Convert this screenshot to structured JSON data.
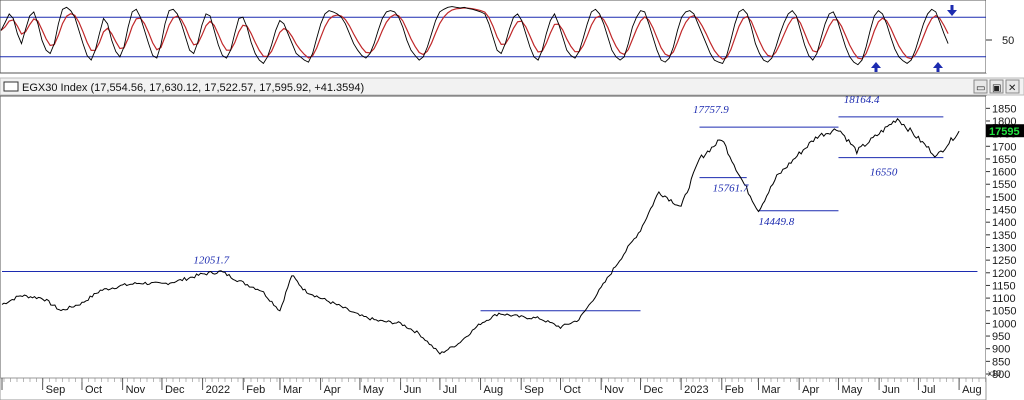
{
  "header": {
    "index_label": "EGX30 Index (17,554.56, 17,630.12, 17,522.57, 17,595.92, +41.3594)",
    "minimize_glyph": "▭",
    "maximize_glyph": "▣",
    "close_glyph": "✕"
  },
  "oscillator": {
    "tick_label": "50",
    "overbought": 80,
    "oversold": 20,
    "ylim": [
      0,
      100
    ]
  },
  "chart_data": {
    "type": "line",
    "x_tick_labels": [
      "Sep",
      "Oct",
      "Nov",
      "Dec",
      "2022",
      "Feb",
      "Mar",
      "Apr",
      "May",
      "Jun",
      "Jul",
      "Aug",
      "Sep",
      "Oct",
      "Nov",
      "Dec",
      "2023",
      "Feb",
      "Mar",
      "Apr",
      "May",
      "Jun",
      "Jul",
      "Aug"
    ],
    "y_tick_labels": [
      "18500",
      "18000",
      "17500",
      "17000",
      "16500",
      "16000",
      "15500",
      "15000",
      "14500",
      "14000",
      "13500",
      "13000",
      "12500",
      "12000",
      "11500",
      "11000",
      "10500",
      "10000",
      "9500",
      "9000",
      "8500",
      "8000"
    ],
    "y_ticks_display": [
      "1850",
      "1800",
      "1750",
      "1700",
      "1650",
      "1600",
      "1550",
      "1500",
      "1450",
      "1400",
      "1350",
      "1300",
      "1250",
      "1200",
      "1150",
      "1100",
      "1050",
      "1000",
      "950",
      "900",
      "850",
      "800"
    ],
    "ylim": [
      8000,
      18750
    ],
    "scale_note": "x10",
    "last_price_label": "17595",
    "series": [
      {
        "x": [
          "2021-08-01",
          "2021-08-15",
          "2021-09-01",
          "2021-09-15",
          "2021-10-01",
          "2021-10-15",
          "2021-11-01",
          "2021-11-15",
          "2021-12-01",
          "2021-12-15",
          "2022-01-01",
          "2022-01-15",
          "2022-02-01",
          "2022-02-15",
          "2022-03-01",
          "2022-03-10",
          "2022-03-20",
          "2022-04-01",
          "2022-04-15",
          "2022-05-01",
          "2022-05-15",
          "2022-06-01",
          "2022-06-15",
          "2022-07-01",
          "2022-07-15",
          "2022-08-01",
          "2022-08-15",
          "2022-09-01",
          "2022-09-15",
          "2022-10-01",
          "2022-10-15",
          "2022-11-01",
          "2022-11-15",
          "2022-12-01",
          "2022-12-15",
          "2023-01-01",
          "2023-01-15",
          "2023-02-01",
          "2023-02-15",
          "2023-03-01",
          "2023-03-15",
          "2023-04-01",
          "2023-04-15",
          "2023-05-01",
          "2023-05-15",
          "2023-06-01",
          "2023-06-15",
          "2023-07-01",
          "2023-07-15",
          "2023-08-01"
        ],
        "y": [
          10750,
          11100,
          11000,
          10500,
          10800,
          11300,
          11500,
          11600,
          11550,
          11700,
          11950,
          12050,
          11600,
          11300,
          10500,
          11900,
          11300,
          11000,
          10700,
          10300,
          10100,
          10000,
          9600,
          8800,
          9200,
          10000,
          10400,
          10250,
          10200,
          9850,
          10150,
          11400,
          12500,
          13700,
          15200,
          14600,
          16500,
          17300,
          15800,
          14450,
          15800,
          16700,
          17400,
          17700,
          16800,
          17500,
          18100,
          17300,
          16600,
          17600
        ],
        "color": "#000000"
      }
    ],
    "annotations": [
      "12051.7",
      "17757.9",
      "15761.7",
      "14449.8",
      "18164.4",
      "16550"
    ],
    "horizontal_levels": [
      {
        "value": 12051.7,
        "x_start": "2021-08-01",
        "x_end": "2023-08-15"
      },
      {
        "value": 10500,
        "x_start": "2022-08-01",
        "x_end": "2022-12-01"
      },
      {
        "value": 17757.9,
        "x_start": "2023-01-15",
        "x_end": "2023-05-01"
      },
      {
        "value": 15761.7,
        "x_start": "2023-01-15",
        "x_end": "2023-02-20"
      },
      {
        "value": 14449.8,
        "x_start": "2023-03-01",
        "x_end": "2023-05-01"
      },
      {
        "value": 18164.4,
        "x_start": "2023-05-01",
        "x_end": "2023-07-20"
      },
      {
        "value": 16550,
        "x_start": "2023-05-01",
        "x_end": "2023-07-20"
      }
    ],
    "grid": false,
    "colors": {
      "price": "#000000",
      "levels": "#1c2bb0",
      "annotations": "#1c2bb0",
      "oscillator_fast": "#000000",
      "oscillator_slow": "#c0282a",
      "arrows": "#1c2bb0",
      "last_price_box": "#000000",
      "last_price_text": "#22e040"
    }
  },
  "oscillator_data": {
    "x": [
      0,
      4,
      8,
      12,
      16,
      20,
      24,
      28,
      32,
      36,
      40,
      44,
      48,
      52,
      56,
      60,
      64,
      68,
      72,
      76,
      80,
      84,
      88,
      92,
      96,
      100,
      104,
      108,
      112,
      116,
      120,
      124,
      128,
      132,
      136,
      140,
      144,
      148,
      152,
      156,
      160,
      164,
      168,
      172,
      176,
      180,
      184,
      188,
      192,
      196,
      200,
      204,
      208,
      212,
      216,
      220,
      224,
      228,
      232,
      236,
      240,
      244,
      248,
      252,
      256,
      260,
      264,
      268,
      272,
      276,
      280,
      284,
      288,
      292,
      296,
      300,
      304,
      308,
      312,
      316,
      320,
      324,
      328,
      332,
      336,
      340,
      344,
      348,
      352,
      356,
      360,
      364,
      368,
      372,
      376,
      380,
      384,
      388,
      392,
      396,
      400,
      404,
      408,
      412,
      416,
      420,
      424,
      428,
      432,
      436,
      440,
      444,
      448,
      452,
      456,
      460,
      464,
      468,
      472,
      476,
      480,
      484,
      488,
      492,
      496,
      500,
      504,
      508,
      512,
      516,
      520,
      524,
      528,
      532,
      536,
      540,
      544,
      548,
      552,
      556,
      560,
      564,
      568,
      572,
      576,
      580,
      584,
      588,
      592,
      596,
      600,
      604,
      608,
      612,
      616,
      620,
      624,
      628,
      632,
      636,
      640,
      644,
      648,
      652,
      656,
      660,
      664,
      668,
      672,
      676,
      680,
      684,
      688,
      692,
      696,
      700,
      704,
      708,
      712,
      716,
      720,
      724,
      728,
      732,
      736,
      740,
      744,
      748,
      752,
      756,
      760,
      764,
      768,
      772,
      776,
      780,
      784,
      788,
      792,
      796,
      800,
      804,
      808,
      812,
      816,
      820,
      824,
      828,
      832,
      836,
      840,
      844,
      848,
      852,
      856,
      860,
      864,
      868,
      872,
      876,
      880,
      884,
      888,
      892,
      896,
      900,
      904,
      908,
      912,
      916,
      920,
      924,
      928,
      932,
      936,
      940,
      944,
      948,
      952,
      956,
      960
    ],
    "fast": [
      60,
      72,
      85,
      78,
      55,
      40,
      62,
      82,
      88,
      70,
      45,
      30,
      25,
      40,
      70,
      92,
      95,
      90,
      80,
      60,
      40,
      22,
      15,
      30,
      55,
      78,
      70,
      45,
      28,
      20,
      35,
      65,
      88,
      92,
      80,
      60,
      40,
      22,
      18,
      38,
      70,
      90,
      92,
      85,
      70,
      50,
      30,
      25,
      42,
      68,
      85,
      82,
      60,
      38,
      22,
      18,
      30,
      55,
      78,
      80,
      65,
      42,
      25,
      15,
      10,
      20,
      38,
      60,
      75,
      70,
      55,
      40,
      25,
      20,
      15,
      12,
      25,
      48,
      70,
      85,
      90,
      88,
      85,
      80,
      70,
      55,
      40,
      30,
      22,
      18,
      25,
      40,
      60,
      78,
      88,
      90,
      88,
      80,
      65,
      45,
      30,
      22,
      15,
      20,
      35,
      55,
      75,
      88,
      92,
      95,
      96,
      95,
      94,
      95,
      93,
      92,
      90,
      88,
      85,
      70,
      50,
      30,
      25,
      40,
      62,
      80,
      85,
      75,
      55,
      35,
      20,
      15,
      30,
      55,
      75,
      85,
      70,
      50,
      30,
      22,
      18,
      28,
      48,
      70,
      88,
      92,
      85,
      70,
      50,
      30,
      20,
      15,
      20,
      40,
      65,
      80,
      90,
      88,
      70,
      50,
      30,
      15,
      12,
      18,
      35,
      60,
      80,
      88,
      90,
      85,
      70,
      55,
      40,
      25,
      15,
      12,
      10,
      22,
      45,
      70,
      88,
      92,
      85,
      65,
      40,
      25,
      15,
      12,
      18,
      35,
      55,
      72,
      85,
      90,
      82,
      60,
      38,
      22,
      15,
      25,
      48,
      70,
      85,
      88,
      75,
      55,
      35,
      20,
      12,
      8,
      15,
      35,
      60,
      82,
      90,
      85,
      70,
      50,
      32,
      20,
      14,
      10,
      15,
      30,
      50,
      70,
      85,
      92,
      88,
      72,
      55,
      40
    ]
  }
}
